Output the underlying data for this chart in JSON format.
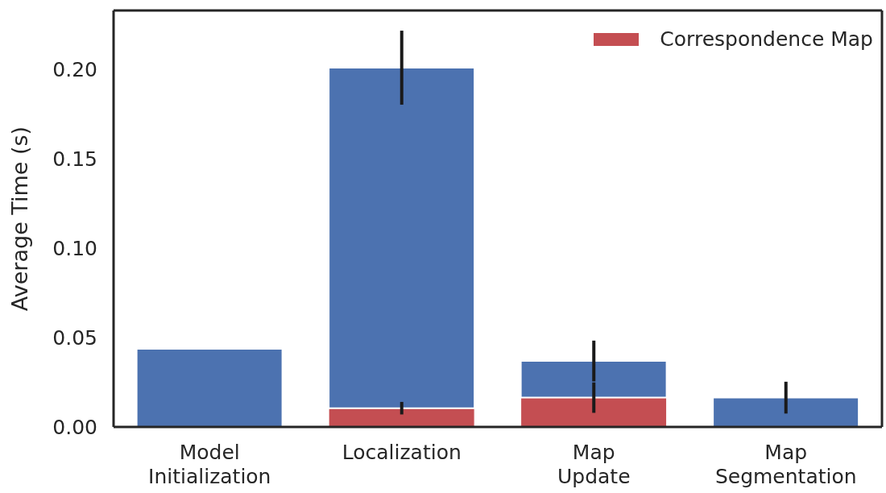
{
  "chart_data": {
    "type": "bar",
    "stacked": true,
    "ylabel": "Average Time (s)",
    "categories": [
      "Model Initialization",
      "Localization",
      "Map Update",
      "Map Segmentation"
    ],
    "series": [
      {
        "name": "Correspondence Map",
        "color": "#c44e52",
        "values": [
          null,
          0.0105,
          0.0164,
          null
        ],
        "errors": [
          null,
          0.0035,
          0.0085,
          null
        ]
      },
      {
        "color": "#4c72b0",
        "values": [
          0.0437,
          0.1905,
          0.0205,
          0.0164
        ],
        "errors": [
          null,
          0.0207,
          0.0114,
          0.0089
        ]
      }
    ],
    "ylim": [
      0,
      0.233
    ],
    "yticks": [
      {
        "value": 0,
        "label": "0.00"
      },
      {
        "value": 0.05,
        "label": "0.05"
      },
      {
        "value": 0.1,
        "label": "0.10"
      },
      {
        "value": 0.15,
        "label": "0.15"
      },
      {
        "value": 0.2,
        "label": "0.20"
      }
    ],
    "grid": false,
    "legend": "top right"
  }
}
